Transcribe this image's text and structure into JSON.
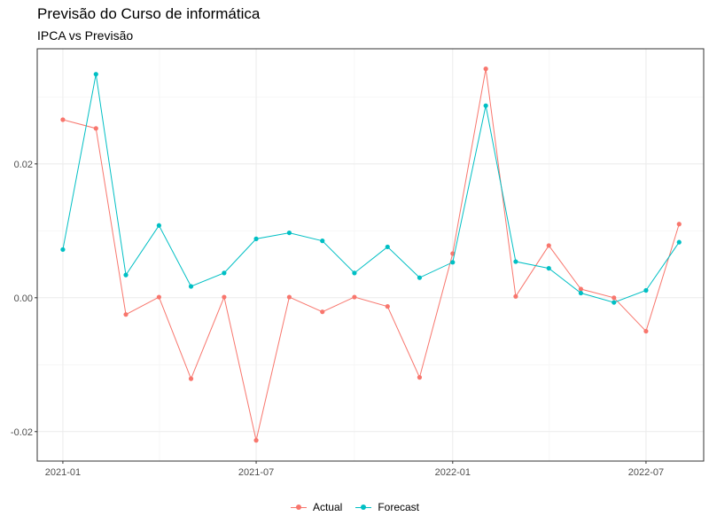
{
  "chart_data": {
    "type": "line",
    "title": "Previsão do Curso de informática",
    "subtitle": "IPCA vs Previsão",
    "xlabel": "",
    "ylabel": "",
    "x": [
      "2021-01-01",
      "2021-02-01",
      "2021-03-01",
      "2021-04-01",
      "2021-05-01",
      "2021-06-01",
      "2021-07-01",
      "2021-08-01",
      "2021-09-01",
      "2021-10-01",
      "2021-11-01",
      "2021-12-01",
      "2022-01-01",
      "2022-02-01",
      "2022-03-01",
      "2022-04-01",
      "2022-05-01",
      "2022-06-01",
      "2022-07-01",
      "2022-08-01"
    ],
    "series": [
      {
        "name": "Actual",
        "color": "#F8766D",
        "values": [
          0.0266,
          0.0253,
          -0.0025,
          0.0001,
          -0.0121,
          0.0001,
          -0.0213,
          0.0001,
          -0.0021,
          0.0001,
          -0.0013,
          -0.0119,
          0.0066,
          0.0342,
          0.0002,
          0.0078,
          0.0013,
          0.0,
          -0.005,
          0.011
        ]
      },
      {
        "name": "Forecast",
        "color": "#00BFC4",
        "values": [
          0.0072,
          0.0334,
          0.0034,
          0.0108,
          0.0017,
          0.0037,
          0.0088,
          0.0097,
          0.0085,
          0.0037,
          0.0076,
          0.003,
          0.0053,
          0.0287,
          0.0054,
          0.0044,
          0.0007,
          -0.0007,
          0.0011,
          0.0083
        ]
      }
    ],
    "xlim": [
      "2020-12-08",
      "2022-08-24"
    ],
    "ylim": [
      -0.0244,
      0.0372
    ],
    "x_ticks": [
      {
        "value": "2021-01-01",
        "label": "2021-01"
      },
      {
        "value": "2021-07-01",
        "label": "2021-07"
      },
      {
        "value": "2022-01-01",
        "label": "2022-01"
      },
      {
        "value": "2022-07-01",
        "label": "2022-07"
      }
    ],
    "y_ticks": [
      {
        "value": -0.02,
        "label": "-0.02"
      },
      {
        "value": 0.0,
        "label": "0.00"
      },
      {
        "value": 0.02,
        "label": "0.02"
      }
    ],
    "grid": true,
    "legend_position": "bottom"
  },
  "legend": {
    "actual_label": "Actual",
    "forecast_label": "Forecast"
  }
}
